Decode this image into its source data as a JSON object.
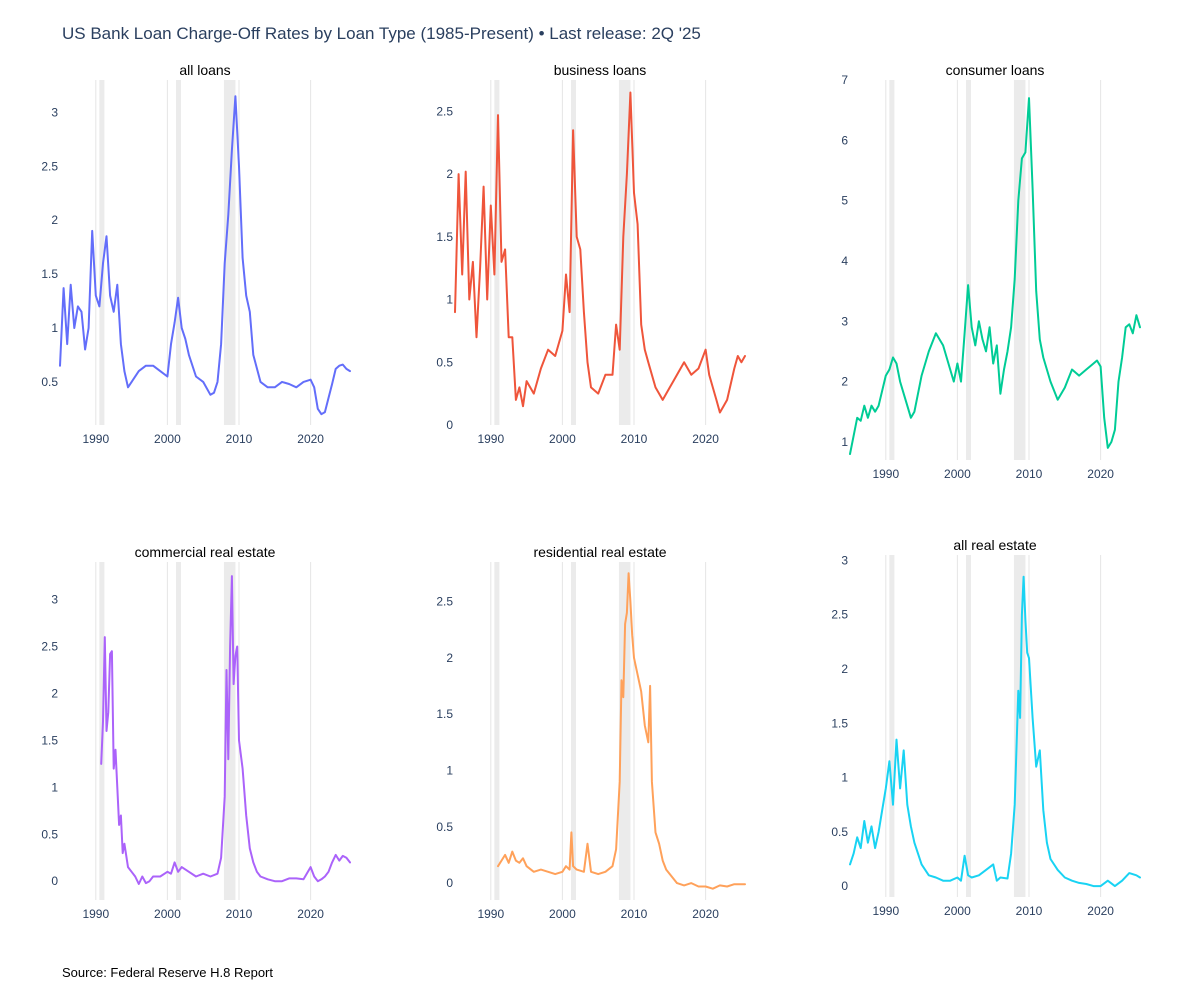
{
  "title": "US Bank Loan Charge-Off Rates by Loan Type (1985-Present) • Last release: 2Q '25",
  "source": "Source: Federal Reserve H.8 Report",
  "recessions": [
    [
      1990.5,
      1991.2
    ],
    [
      2001.2,
      2001.9
    ],
    [
      2007.9,
      2009.5
    ]
  ],
  "colors": {
    "grid": "#e5e5e5",
    "recession": "#ebebeb",
    "axis_text": "#2a3f5f"
  },
  "chart_data": [
    {
      "type": "line",
      "subplot_title": "all loans",
      "color": "#636efa",
      "xticks": [
        1990,
        2000,
        2010,
        2020
      ],
      "yticks": [
        "0.5",
        "1",
        "1.5",
        "2",
        "2.5",
        "3"
      ],
      "xlim": [
        1985,
        2025.5
      ],
      "ylim": [
        0.1,
        3.3
      ],
      "x": [
        1985,
        1985.5,
        1986,
        1986.5,
        1987,
        1987.5,
        1988,
        1988.5,
        1989,
        1989.5,
        1990,
        1990.5,
        1991,
        1991.5,
        1992,
        1992.5,
        1993,
        1993.5,
        1994,
        1994.5,
        1995,
        1996,
        1997,
        1998,
        1999,
        2000,
        2000.5,
        2001,
        2001.5,
        2002,
        2002.5,
        2003,
        2004,
        2005,
        2006,
        2006.5,
        2007,
        2007.5,
        2008,
        2008.5,
        2009,
        2009.5,
        2010,
        2010.5,
        2011,
        2011.5,
        2012,
        2013,
        2014,
        2015,
        2016,
        2017,
        2018,
        2019,
        2020,
        2020.5,
        2021,
        2021.5,
        2022,
        2022.5,
        2023,
        2023.5,
        2024,
        2024.5,
        2025,
        2025.5
      ],
      "y": [
        0.65,
        1.37,
        0.85,
        1.4,
        1.0,
        1.2,
        1.15,
        0.8,
        1.0,
        1.9,
        1.3,
        1.2,
        1.6,
        1.85,
        1.3,
        1.15,
        1.4,
        0.85,
        0.6,
        0.45,
        0.5,
        0.6,
        0.65,
        0.65,
        0.6,
        0.55,
        0.85,
        1.05,
        1.28,
        1.0,
        0.9,
        0.75,
        0.55,
        0.5,
        0.38,
        0.4,
        0.5,
        0.85,
        1.6,
        2.05,
        2.65,
        3.15,
        2.5,
        1.65,
        1.3,
        1.15,
        0.75,
        0.5,
        0.45,
        0.45,
        0.5,
        0.48,
        0.45,
        0.5,
        0.52,
        0.45,
        0.25,
        0.2,
        0.22,
        0.35,
        0.48,
        0.62,
        0.65,
        0.66,
        0.62,
        0.6
      ]
    },
    {
      "type": "line",
      "subplot_title": "business loans",
      "color": "#ef553b",
      "xticks": [
        1990,
        2000,
        2010,
        2020
      ],
      "yticks": [
        "0",
        "0.5",
        "1",
        "1.5",
        "2",
        "2.5"
      ],
      "xlim": [
        1985,
        2025.5
      ],
      "ylim": [
        0,
        2.75
      ],
      "x": [
        1985,
        1985.5,
        1986,
        1986.5,
        1987,
        1987.5,
        1988,
        1988.5,
        1989,
        1989.5,
        1990,
        1990.5,
        1991,
        1991.5,
        1992,
        1992.5,
        1993,
        1993.5,
        1994,
        1994.5,
        1995,
        1996,
        1997,
        1998,
        1999,
        2000,
        2000.5,
        2001,
        2001.5,
        2002,
        2002.5,
        2003,
        2003.5,
        2004,
        2005,
        2006,
        2007,
        2007.5,
        2008,
        2008.5,
        2009,
        2009.5,
        2010,
        2010.5,
        2011,
        2011.5,
        2012,
        2013,
        2014,
        2015,
        2016,
        2017,
        2018,
        2019,
        2020,
        2020.5,
        2021,
        2021.5,
        2022,
        2022.5,
        2023,
        2024,
        2024.5,
        2025,
        2025.5
      ],
      "y": [
        0.9,
        2.0,
        1.2,
        2.02,
        1.0,
        1.3,
        0.7,
        1.25,
        1.9,
        1.0,
        1.75,
        1.2,
        2.47,
        1.3,
        1.4,
        0.7,
        0.7,
        0.2,
        0.3,
        0.15,
        0.35,
        0.25,
        0.45,
        0.6,
        0.55,
        0.75,
        1.2,
        0.9,
        2.35,
        1.5,
        1.4,
        0.9,
        0.5,
        0.3,
        0.25,
        0.4,
        0.4,
        0.8,
        0.6,
        1.5,
        2.0,
        2.65,
        1.85,
        1.6,
        0.8,
        0.6,
        0.5,
        0.3,
        0.2,
        0.3,
        0.4,
        0.5,
        0.4,
        0.45,
        0.6,
        0.4,
        0.3,
        0.2,
        0.1,
        0.15,
        0.2,
        0.45,
        0.55,
        0.5,
        0.55
      ]
    },
    {
      "type": "line",
      "subplot_title": "consumer loans",
      "color": "#00cc96",
      "xticks": [
        1990,
        2000,
        2010,
        2020
      ],
      "yticks": [
        "1",
        "2",
        "3",
        "4",
        "5",
        "6",
        "7"
      ],
      "xlim": [
        1985,
        2025.5
      ],
      "ylim": [
        0.7,
        7.0
      ],
      "x": [
        1985,
        1985.5,
        1986,
        1986.5,
        1987,
        1987.5,
        1988,
        1988.5,
        1989,
        1990,
        1990.5,
        1991,
        1991.5,
        1992,
        1992.5,
        1993,
        1993.5,
        1994,
        1995,
        1996,
        1997,
        1998,
        1999,
        1999.5,
        2000,
        2000.5,
        2001,
        2001.5,
        2002,
        2002.5,
        2003,
        2003.5,
        2004,
        2004.5,
        2005,
        2005.5,
        2006,
        2006.5,
        2007,
        2007.5,
        2008,
        2008.5,
        2009,
        2009.5,
        2010,
        2010.5,
        2011,
        2011.5,
        2012,
        2013,
        2014,
        2015,
        2016,
        2017,
        2018,
        2019,
        2019.5,
        2020,
        2020.5,
        2021,
        2021.5,
        2022,
        2022.5,
        2023,
        2023.5,
        2024,
        2024.5,
        2025,
        2025.5
      ],
      "y": [
        0.8,
        1.1,
        1.4,
        1.35,
        1.6,
        1.4,
        1.6,
        1.5,
        1.6,
        2.1,
        2.2,
        2.4,
        2.3,
        2.0,
        1.8,
        1.6,
        1.4,
        1.5,
        2.1,
        2.5,
        2.8,
        2.6,
        2.2,
        2.0,
        2.3,
        2.0,
        2.8,
        3.6,
        2.9,
        2.6,
        3.0,
        2.7,
        2.5,
        2.9,
        2.3,
        2.6,
        1.8,
        2.2,
        2.5,
        2.9,
        3.7,
        5.0,
        5.7,
        5.8,
        6.7,
        5.2,
        3.5,
        2.7,
        2.4,
        2.0,
        1.7,
        1.9,
        2.2,
        2.1,
        2.2,
        2.3,
        2.35,
        2.25,
        1.4,
        0.9,
        1.0,
        1.2,
        2.0,
        2.4,
        2.9,
        2.95,
        2.8,
        3.1,
        2.9
      ]
    },
    {
      "type": "line",
      "subplot_title": "commercial real estate",
      "color": "#ab63fa",
      "xticks": [
        1990,
        2000,
        2010,
        2020
      ],
      "yticks": [
        "0",
        "0.5",
        "1",
        "1.5",
        "2",
        "2.5",
        "3"
      ],
      "xlim": [
        1985,
        2025.5
      ],
      "ylim": [
        -0.2,
        3.4
      ],
      "x": [
        1990.75,
        1991,
        1991.25,
        1991.5,
        1991.75,
        1992,
        1992.25,
        1992.5,
        1992.75,
        1993,
        1993.25,
        1993.5,
        1993.75,
        1994,
        1994.5,
        1995,
        1995.5,
        1996,
        1996.5,
        1997,
        1997.5,
        1998,
        1999,
        2000,
        2000.5,
        2001,
        2001.5,
        2002,
        2003,
        2004,
        2005,
        2006,
        2007,
        2007.5,
        2008,
        2008.25,
        2008.5,
        2008.75,
        2009,
        2009.25,
        2009.5,
        2009.75,
        2010,
        2010.5,
        2011,
        2011.5,
        2012,
        2012.5,
        2013,
        2014,
        2015,
        2016,
        2017,
        2018,
        2019,
        2020,
        2020.5,
        2021,
        2021.5,
        2022,
        2022.5,
        2023,
        2023.5,
        2024,
        2024.5,
        2025,
        2025.5
      ],
      "y": [
        1.25,
        1.7,
        2.6,
        1.6,
        1.8,
        2.42,
        2.45,
        1.2,
        1.4,
        1.0,
        0.6,
        0.7,
        0.3,
        0.4,
        0.15,
        0.1,
        0.05,
        -0.03,
        0.05,
        -0.02,
        0.0,
        0.05,
        0.05,
        0.1,
        0.08,
        0.2,
        0.1,
        0.15,
        0.1,
        0.05,
        0.08,
        0.05,
        0.08,
        0.25,
        0.9,
        2.25,
        1.3,
        2.5,
        3.25,
        2.1,
        2.4,
        2.5,
        1.5,
        1.2,
        0.7,
        0.35,
        0.2,
        0.1,
        0.05,
        0.02,
        0.0,
        0.0,
        0.03,
        0.03,
        0.02,
        0.15,
        0.05,
        0.0,
        0.02,
        0.05,
        0.1,
        0.2,
        0.28,
        0.22,
        0.27,
        0.25,
        0.2
      ]
    },
    {
      "type": "line",
      "subplot_title": "residential real estate",
      "color": "#ffa15a",
      "xticks": [
        1990,
        2000,
        2010,
        2020
      ],
      "yticks": [
        "0",
        "0.5",
        "1",
        "1.5",
        "2",
        "2.5"
      ],
      "xlim": [
        1985,
        2025.5
      ],
      "ylim": [
        -0.15,
        2.85
      ],
      "x": [
        1991,
        1991.5,
        1992,
        1992.5,
        1993,
        1993.5,
        1994,
        1994.5,
        1995,
        1996,
        1997,
        1998,
        1999,
        2000,
        2000.5,
        2001,
        2001.25,
        2001.5,
        2002,
        2003,
        2003.5,
        2004,
        2005,
        2006,
        2007,
        2007.5,
        2008,
        2008.25,
        2008.5,
        2008.75,
        2009,
        2009.25,
        2009.5,
        2009.75,
        2010,
        2010.5,
        2011,
        2011.5,
        2012,
        2012.25,
        2012.5,
        2013,
        2013.5,
        2014,
        2014.5,
        2015,
        2016,
        2017,
        2018,
        2019,
        2020,
        2021,
        2022,
        2023,
        2024,
        2025,
        2025.5
      ],
      "y": [
        0.15,
        0.2,
        0.25,
        0.18,
        0.28,
        0.2,
        0.18,
        0.22,
        0.15,
        0.1,
        0.12,
        0.1,
        0.08,
        0.1,
        0.15,
        0.12,
        0.45,
        0.15,
        0.12,
        0.1,
        0.35,
        0.1,
        0.08,
        0.1,
        0.15,
        0.3,
        0.9,
        1.8,
        1.65,
        2.3,
        2.4,
        2.75,
        2.5,
        2.2,
        2.0,
        1.85,
        1.7,
        1.4,
        1.25,
        1.75,
        0.9,
        0.45,
        0.35,
        0.2,
        0.12,
        0.08,
        0.0,
        -0.02,
        0.0,
        -0.03,
        -0.03,
        -0.05,
        -0.02,
        -0.03,
        -0.01,
        -0.01,
        -0.01
      ]
    },
    {
      "type": "line",
      "subplot_title": "all real estate",
      "color": "#19d3f3",
      "xticks": [
        1990,
        2000,
        2010,
        2020
      ],
      "yticks": [
        "0",
        "0.5",
        "1",
        "1.5",
        "2",
        "2.5",
        "3"
      ],
      "xlim": [
        1985,
        2025.5
      ],
      "ylim": [
        -0.1,
        3.05
      ],
      "x": [
        1985,
        1985.5,
        1986,
        1986.5,
        1987,
        1987.5,
        1988,
        1988.5,
        1989,
        1989.5,
        1990,
        1990.5,
        1991,
        1991.5,
        1992,
        1992.5,
        1993,
        1993.5,
        1994,
        1995,
        1996,
        1997,
        1998,
        1999,
        2000,
        2000.5,
        2001,
        2001.5,
        2002,
        2003,
        2004,
        2005,
        2005.5,
        2006,
        2007,
        2007.5,
        2008,
        2008.5,
        2008.75,
        2009,
        2009.25,
        2009.5,
        2009.75,
        2010,
        2010.5,
        2011,
        2011.5,
        2012,
        2012.5,
        2013,
        2014,
        2015,
        2016,
        2017,
        2018,
        2019,
        2020,
        2021,
        2022,
        2023,
        2024,
        2025,
        2025.5
      ],
      "y": [
        0.2,
        0.3,
        0.45,
        0.35,
        0.6,
        0.4,
        0.55,
        0.35,
        0.5,
        0.7,
        0.9,
        1.15,
        0.75,
        1.35,
        0.9,
        1.25,
        0.75,
        0.55,
        0.4,
        0.2,
        0.1,
        0.08,
        0.05,
        0.05,
        0.08,
        0.05,
        0.28,
        0.1,
        0.08,
        0.1,
        0.15,
        0.2,
        0.05,
        0.08,
        0.07,
        0.3,
        0.75,
        1.8,
        1.55,
        2.5,
        2.85,
        2.45,
        2.15,
        2.1,
        1.55,
        1.1,
        1.25,
        0.7,
        0.4,
        0.25,
        0.15,
        0.08,
        0.05,
        0.03,
        0.02,
        0.0,
        0.0,
        0.05,
        0.0,
        0.05,
        0.12,
        0.1,
        0.08
      ]
    }
  ]
}
